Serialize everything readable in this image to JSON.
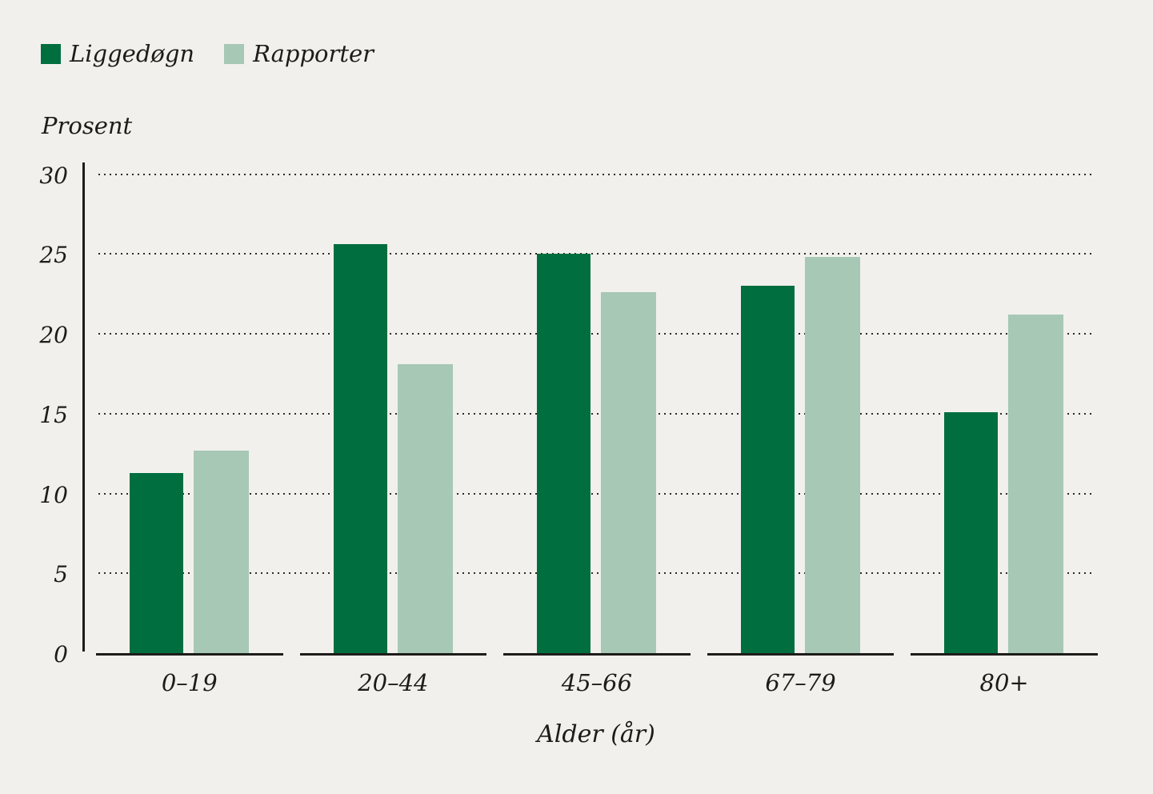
{
  "chart_data": {
    "type": "bar",
    "title": "",
    "ylabel": "Prosent",
    "xlabel": "Alder (år)",
    "categories": [
      "0–19",
      "20–44",
      "45–66",
      "67–79",
      "80+"
    ],
    "series": [
      {
        "name": "Liggedøgn",
        "color": "#006E3F",
        "values": [
          11.3,
          25.6,
          25.0,
          23.0,
          15.1
        ]
      },
      {
        "name": "Rapporter",
        "color": "#A6C8B5",
        "values": [
          12.7,
          18.1,
          22.6,
          24.8,
          21.2
        ]
      }
    ],
    "ylim": [
      0,
      30
    ],
    "yticks": [
      0,
      5,
      10,
      15,
      20,
      25,
      30
    ],
    "grid": "horizontal-dotted",
    "legend_position": "top-left",
    "background_color": "#F1F0ED",
    "axis_color": "#1D1C1A"
  }
}
